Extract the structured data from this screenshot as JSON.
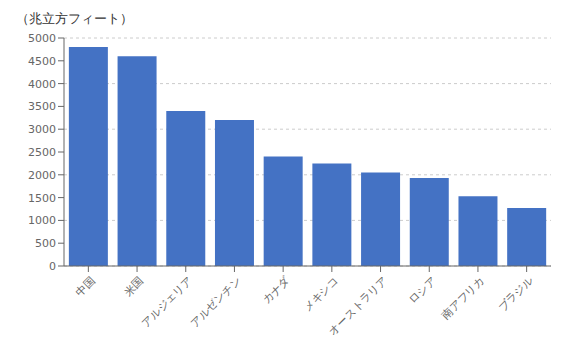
{
  "chart_data": {
    "type": "bar",
    "ylabel": "（兆立方フィート）",
    "categories": [
      "中国",
      "米国",
      "アルジェリア",
      "アルゼンチン",
      "カナダ",
      "メキシコ",
      "オーストラリア",
      "ロシア",
      "南アフリカ",
      "ブラジル"
    ],
    "values": [
      4800,
      4600,
      3400,
      3200,
      2400,
      2250,
      2050,
      1930,
      1530,
      1270
    ],
    "color": "#4472c4",
    "ylim": [
      0,
      5000
    ],
    "yticks": [
      0,
      500,
      1000,
      1500,
      2000,
      2500,
      3000,
      3500,
      4000,
      4500,
      5000
    ],
    "grid": true
  }
}
